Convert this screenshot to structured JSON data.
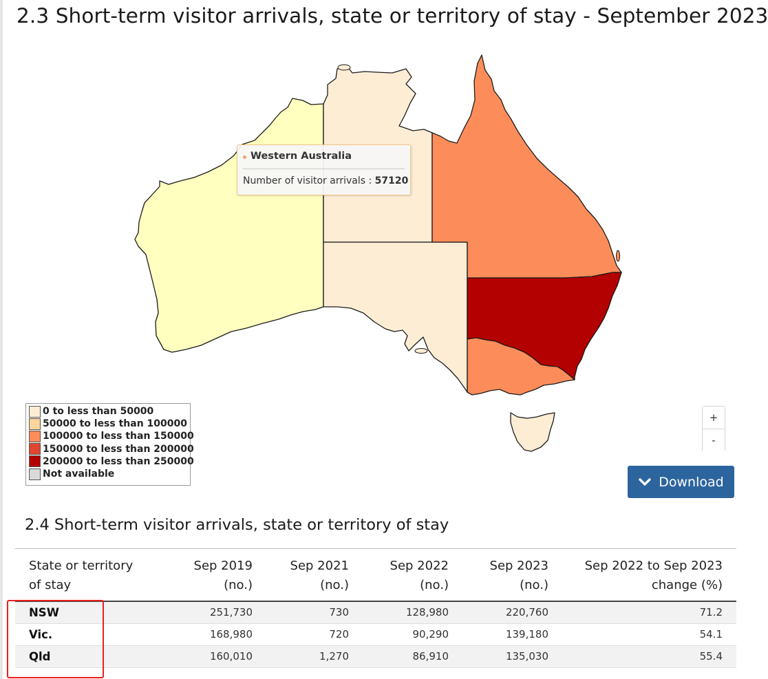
{
  "page_title": "2.3 Short-term visitor arrivals, state or territory of stay - September 2023",
  "map": {
    "colors": {
      "band_0": "#feedd5",
      "band_1": "#fdd49c",
      "band_2": "#fc8d5a",
      "band_3": "#e04530",
      "band_4": "#b30000",
      "not_available": "#d9d9d9",
      "western_australia": "#ffffc0",
      "border": "#1a1a1a"
    },
    "regions": [
      {
        "name": "Western Australia",
        "band": "special"
      },
      {
        "name": "Northern Territory",
        "band": "0 to less than 50000"
      },
      {
        "name": "South Australia",
        "band": "0 to less than 50000"
      },
      {
        "name": "Queensland",
        "band": "100000 to less than 150000"
      },
      {
        "name": "New South Wales",
        "band": "200000 to less than 250000"
      },
      {
        "name": "Victoria",
        "band": "100000 to less than 150000"
      },
      {
        "name": "Tasmania",
        "band": "0 to less than 50000"
      }
    ],
    "tooltip": {
      "region": "Western Australia",
      "label": "Number of visitor arrivals : ",
      "value": "57120"
    },
    "legend": [
      {
        "label": "0 to less than 50000",
        "color": "#feedd5"
      },
      {
        "label": "50000 to less than 100000",
        "color": "#fdd49c"
      },
      {
        "label": "100000 to less than 150000",
        "color": "#fc8d5a"
      },
      {
        "label": "150000 to less than 200000",
        "color": "#e04530"
      },
      {
        "label": "200000 to less than 250000",
        "color": "#b30000"
      },
      {
        "label": "Not available",
        "color": "#d9d9d9"
      }
    ],
    "zoom_in": "+",
    "zoom_out": "-"
  },
  "download": {
    "label": "Download",
    "icon": "chevron-down-icon",
    "color": "#2c659e"
  },
  "table": {
    "title": "2.4 Short-term visitor arrivals, state or territory of stay",
    "headers": [
      {
        "line1": "State or territory",
        "line2": "of stay"
      },
      {
        "line1": "Sep 2019",
        "line2": "(no.)"
      },
      {
        "line1": "Sep 2021",
        "line2": "(no.)"
      },
      {
        "line1": "Sep 2022",
        "line2": "(no.)"
      },
      {
        "line1": "Sep 2023",
        "line2": "(no.)"
      },
      {
        "line1": "Sep 2022 to Sep 2023",
        "line2": "change (%)"
      }
    ],
    "rows": [
      [
        "NSW",
        "251,730",
        "730",
        "128,980",
        "220,760",
        "71.2"
      ],
      [
        "Vic.",
        "168,980",
        "720",
        "90,290",
        "139,180",
        "54.1"
      ],
      [
        "Qld",
        "160,010",
        "1,270",
        "86,910",
        "135,030",
        "55.4"
      ]
    ]
  },
  "highlight": {
    "color": "#e8201d"
  }
}
